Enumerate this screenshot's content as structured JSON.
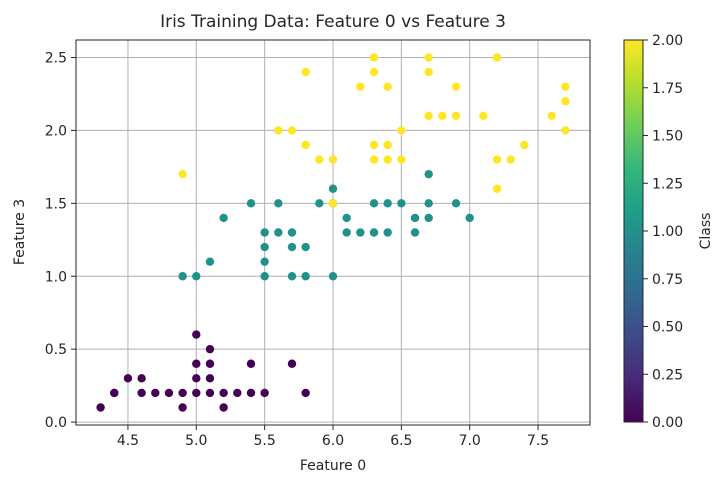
{
  "chart_data": {
    "type": "scatter",
    "title": "Iris Training Data: Feature 0 vs Feature 3",
    "xlabel": "Feature 0",
    "ylabel": "Feature 3",
    "xlim": [
      4.12,
      7.88
    ],
    "ylim": [
      -0.02,
      2.62
    ],
    "x_ticks": [
      "4.5",
      "5.0",
      "5.5",
      "6.0",
      "6.5",
      "7.0",
      "7.5"
    ],
    "x_tick_values": [
      4.5,
      5.0,
      5.5,
      6.0,
      6.5,
      7.0,
      7.5
    ],
    "y_ticks": [
      "0.0",
      "0.5",
      "1.0",
      "1.5",
      "2.0",
      "2.5"
    ],
    "y_tick_values": [
      0.0,
      0.5,
      1.0,
      1.5,
      2.0,
      2.5
    ],
    "grid": true,
    "colormap": "viridis",
    "colorbar": {
      "label": "Class",
      "range": [
        0,
        2
      ],
      "ticks": [
        "0.00",
        "0.25",
        "0.50",
        "0.75",
        "1.00",
        "1.25",
        "1.50",
        "1.75",
        "2.00"
      ],
      "tick_values": [
        0,
        0.25,
        0.5,
        0.75,
        1.0,
        1.25,
        1.5,
        1.75,
        2.0
      ],
      "stops": [
        "#440154",
        "#482878",
        "#3e4989",
        "#31688e",
        "#26828e",
        "#1f9e89",
        "#35b779",
        "#6ece58",
        "#b5de2b",
        "#fde725"
      ]
    },
    "class_colors": [
      "#440154",
      "#21918c",
      "#fde725"
    ],
    "points": [
      {
        "x": 4.3,
        "y": 0.1,
        "c": 0
      },
      {
        "x": 4.4,
        "y": 0.2,
        "c": 0
      },
      {
        "x": 4.4,
        "y": 0.2,
        "c": 0
      },
      {
        "x": 4.5,
        "y": 0.3,
        "c": 0
      },
      {
        "x": 4.6,
        "y": 0.2,
        "c": 0
      },
      {
        "x": 4.6,
        "y": 0.3,
        "c": 0
      },
      {
        "x": 4.7,
        "y": 0.2,
        "c": 0
      },
      {
        "x": 4.8,
        "y": 0.2,
        "c": 0
      },
      {
        "x": 4.9,
        "y": 0.1,
        "c": 0
      },
      {
        "x": 4.9,
        "y": 0.2,
        "c": 0
      },
      {
        "x": 5.0,
        "y": 0.2,
        "c": 0
      },
      {
        "x": 5.0,
        "y": 0.3,
        "c": 0
      },
      {
        "x": 5.0,
        "y": 0.6,
        "c": 0
      },
      {
        "x": 5.0,
        "y": 0.4,
        "c": 0
      },
      {
        "x": 5.1,
        "y": 0.2,
        "c": 0
      },
      {
        "x": 5.1,
        "y": 0.3,
        "c": 0
      },
      {
        "x": 5.1,
        "y": 0.4,
        "c": 0
      },
      {
        "x": 5.1,
        "y": 0.5,
        "c": 0
      },
      {
        "x": 5.2,
        "y": 0.1,
        "c": 0
      },
      {
        "x": 5.2,
        "y": 0.2,
        "c": 0
      },
      {
        "x": 5.3,
        "y": 0.2,
        "c": 0
      },
      {
        "x": 5.4,
        "y": 0.2,
        "c": 0
      },
      {
        "x": 5.4,
        "y": 0.4,
        "c": 0
      },
      {
        "x": 5.5,
        "y": 0.2,
        "c": 0
      },
      {
        "x": 5.7,
        "y": 0.4,
        "c": 0
      },
      {
        "x": 5.8,
        "y": 0.2,
        "c": 0
      },
      {
        "x": 4.9,
        "y": 1.0,
        "c": 1
      },
      {
        "x": 5.0,
        "y": 1.0,
        "c": 1
      },
      {
        "x": 5.1,
        "y": 1.1,
        "c": 1
      },
      {
        "x": 5.2,
        "y": 1.4,
        "c": 1
      },
      {
        "x": 5.4,
        "y": 1.5,
        "c": 1
      },
      {
        "x": 5.5,
        "y": 1.0,
        "c": 1
      },
      {
        "x": 5.5,
        "y": 1.1,
        "c": 1
      },
      {
        "x": 5.5,
        "y": 1.2,
        "c": 1
      },
      {
        "x": 5.5,
        "y": 1.3,
        "c": 1
      },
      {
        "x": 5.6,
        "y": 1.3,
        "c": 1
      },
      {
        "x": 5.6,
        "y": 1.5,
        "c": 1
      },
      {
        "x": 5.7,
        "y": 1.0,
        "c": 1
      },
      {
        "x": 5.7,
        "y": 1.2,
        "c": 1
      },
      {
        "x": 5.7,
        "y": 1.3,
        "c": 1
      },
      {
        "x": 5.8,
        "y": 1.0,
        "c": 1
      },
      {
        "x": 5.8,
        "y": 1.2,
        "c": 1
      },
      {
        "x": 5.9,
        "y": 1.5,
        "c": 1
      },
      {
        "x": 6.0,
        "y": 1.0,
        "c": 1
      },
      {
        "x": 6.0,
        "y": 1.6,
        "c": 1
      },
      {
        "x": 6.0,
        "y": 1.5,
        "c": 1
      },
      {
        "x": 6.1,
        "y": 1.3,
        "c": 1
      },
      {
        "x": 6.1,
        "y": 1.4,
        "c": 1
      },
      {
        "x": 6.2,
        "y": 1.3,
        "c": 1
      },
      {
        "x": 6.3,
        "y": 1.3,
        "c": 1
      },
      {
        "x": 6.3,
        "y": 1.5,
        "c": 1
      },
      {
        "x": 6.4,
        "y": 1.3,
        "c": 1
      },
      {
        "x": 6.4,
        "y": 1.5,
        "c": 1
      },
      {
        "x": 6.5,
        "y": 1.5,
        "c": 1
      },
      {
        "x": 6.6,
        "y": 1.3,
        "c": 1
      },
      {
        "x": 6.6,
        "y": 1.4,
        "c": 1
      },
      {
        "x": 6.7,
        "y": 1.4,
        "c": 1
      },
      {
        "x": 6.7,
        "y": 1.5,
        "c": 1
      },
      {
        "x": 6.7,
        "y": 1.7,
        "c": 1
      },
      {
        "x": 6.9,
        "y": 1.5,
        "c": 1
      },
      {
        "x": 7.0,
        "y": 1.4,
        "c": 1
      },
      {
        "x": 4.9,
        "y": 1.7,
        "c": 2
      },
      {
        "x": 5.6,
        "y": 2.0,
        "c": 2
      },
      {
        "x": 5.7,
        "y": 2.0,
        "c": 2
      },
      {
        "x": 5.8,
        "y": 1.9,
        "c": 2
      },
      {
        "x": 5.8,
        "y": 2.4,
        "c": 2
      },
      {
        "x": 5.9,
        "y": 1.8,
        "c": 2
      },
      {
        "x": 6.0,
        "y": 1.8,
        "c": 2
      },
      {
        "x": 6.0,
        "y": 1.5,
        "c": 2
      },
      {
        "x": 6.2,
        "y": 2.3,
        "c": 2
      },
      {
        "x": 6.3,
        "y": 1.8,
        "c": 2
      },
      {
        "x": 6.3,
        "y": 1.9,
        "c": 2
      },
      {
        "x": 6.3,
        "y": 2.4,
        "c": 2
      },
      {
        "x": 6.3,
        "y": 2.5,
        "c": 2
      },
      {
        "x": 6.4,
        "y": 1.8,
        "c": 2
      },
      {
        "x": 6.4,
        "y": 1.9,
        "c": 2
      },
      {
        "x": 6.4,
        "y": 2.3,
        "c": 2
      },
      {
        "x": 6.5,
        "y": 1.8,
        "c": 2
      },
      {
        "x": 6.5,
        "y": 2.0,
        "c": 2
      },
      {
        "x": 6.7,
        "y": 2.1,
        "c": 2
      },
      {
        "x": 6.7,
        "y": 2.4,
        "c": 2
      },
      {
        "x": 6.7,
        "y": 2.5,
        "c": 2
      },
      {
        "x": 6.8,
        "y": 2.1,
        "c": 2
      },
      {
        "x": 6.9,
        "y": 2.1,
        "c": 2
      },
      {
        "x": 6.9,
        "y": 2.3,
        "c": 2
      },
      {
        "x": 7.1,
        "y": 2.1,
        "c": 2
      },
      {
        "x": 7.2,
        "y": 1.6,
        "c": 2
      },
      {
        "x": 7.2,
        "y": 1.8,
        "c": 2
      },
      {
        "x": 7.2,
        "y": 2.5,
        "c": 2
      },
      {
        "x": 7.3,
        "y": 1.8,
        "c": 2
      },
      {
        "x": 7.4,
        "y": 1.9,
        "c": 2
      },
      {
        "x": 7.6,
        "y": 2.1,
        "c": 2
      },
      {
        "x": 7.7,
        "y": 2.0,
        "c": 2
      },
      {
        "x": 7.7,
        "y": 2.2,
        "c": 2
      },
      {
        "x": 7.7,
        "y": 2.3,
        "c": 2
      }
    ]
  }
}
